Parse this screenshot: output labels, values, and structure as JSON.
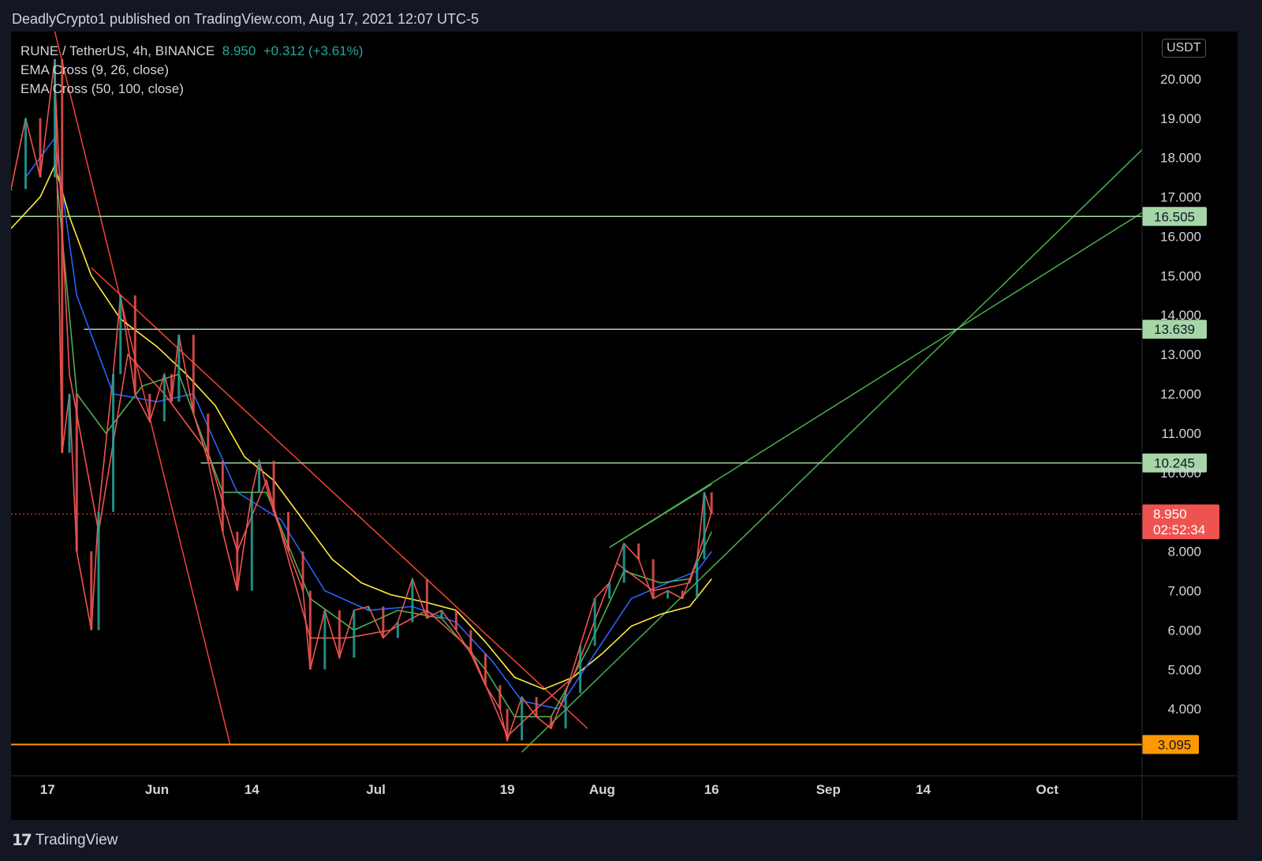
{
  "header": {
    "attribution": "DeadlyCrypto1 published on TradingView.com, Aug 17, 2021 12:07 UTC-5"
  },
  "legend": {
    "symbol": "RUNE / TetherUS, 4h, BINANCE",
    "price": "8.950",
    "change": "+0.312 (+3.61%)",
    "ema1": "EMA Cross (9, 26, close)",
    "ema2": "EMA Cross (50, 100, close)"
  },
  "currency": "USDT",
  "footer": {
    "brand": "TradingView"
  },
  "colors": {
    "background": "#000000",
    "up": "#26a69a",
    "down": "#ef5350",
    "level_line": "#a5d6a7",
    "support_line": "#ff9800",
    "trend_red": "#f44336",
    "trend_green": "#4caf50",
    "ema_yellow": "#ffeb3b",
    "ema_blue": "#2962ff",
    "ema_green": "#4caf50",
    "ema_red": "#ef5350"
  },
  "chart_data": {
    "type": "line",
    "title": "RUNE / TetherUS, 4h, BINANCE",
    "x_tick_labels": [
      "17",
      "Jun",
      "14",
      "Jul",
      "19",
      "Aug",
      "16",
      "Sep",
      "14",
      "Oct"
    ],
    "x_tick_dates": [
      "2021-05-17",
      "2021-06-01",
      "2021-06-14",
      "2021-07-01",
      "2021-07-19",
      "2021-08-01",
      "2021-08-16",
      "2021-09-01",
      "2021-09-14",
      "2021-10-01"
    ],
    "y_tick_labels": [
      "4.000",
      "5.000",
      "6.000",
      "7.000",
      "8.000",
      "10.000",
      "11.000",
      "12.000",
      "13.000",
      "14.000",
      "15.000",
      "16.000",
      "17.000",
      "18.000",
      "19.000",
      "20.000"
    ],
    "ylim": [
      2.3,
      21.2
    ],
    "series": [
      {
        "values": [
          [
            "2021-05-12",
            17.2
          ],
          [
            "2021-05-14",
            19.0
          ],
          [
            "2021-05-16",
            17.5
          ],
          [
            "2021-05-18",
            20.5
          ],
          [
            "2021-05-19",
            10.5
          ],
          [
            "2021-05-20",
            12.0
          ],
          [
            "2021-05-21",
            8.0
          ],
          [
            "2021-05-23",
            6.0
          ],
          [
            "2021-05-24",
            9.0
          ],
          [
            "2021-05-26",
            12.5
          ],
          [
            "2021-05-27",
            14.5
          ],
          [
            "2021-05-29",
            12.0
          ],
          [
            "2021-05-31",
            11.3
          ],
          [
            "2021-06-02",
            12.5
          ],
          [
            "2021-06-03",
            11.8
          ],
          [
            "2021-06-04",
            13.5
          ],
          [
            "2021-06-06",
            11.5
          ],
          [
            "2021-06-08",
            10.3
          ],
          [
            "2021-06-10",
            8.5
          ],
          [
            "2021-06-12",
            7.0
          ],
          [
            "2021-06-14",
            9.5
          ],
          [
            "2021-06-15",
            10.3
          ],
          [
            "2021-06-17",
            9.0
          ],
          [
            "2021-06-19",
            8.0
          ],
          [
            "2021-06-21",
            7.0
          ],
          [
            "2021-06-22",
            5.0
          ],
          [
            "2021-06-24",
            6.5
          ],
          [
            "2021-06-26",
            5.3
          ],
          [
            "2021-06-28",
            6.5
          ],
          [
            "2021-06-30",
            6.6
          ],
          [
            "2021-07-02",
            5.8
          ],
          [
            "2021-07-04",
            6.2
          ],
          [
            "2021-07-06",
            7.3
          ],
          [
            "2021-07-08",
            6.3
          ],
          [
            "2021-07-10",
            6.5
          ],
          [
            "2021-07-12",
            6.0
          ],
          [
            "2021-07-14",
            5.4
          ],
          [
            "2021-07-16",
            4.6
          ],
          [
            "2021-07-18",
            4.0
          ],
          [
            "2021-07-19",
            3.2
          ],
          [
            "2021-07-21",
            4.3
          ],
          [
            "2021-07-23",
            3.8
          ],
          [
            "2021-07-25",
            3.5
          ],
          [
            "2021-07-27",
            4.4
          ],
          [
            "2021-07-29",
            5.6
          ],
          [
            "2021-07-31",
            6.8
          ],
          [
            "2021-08-02",
            7.2
          ],
          [
            "2021-08-04",
            8.2
          ],
          [
            "2021-08-06",
            7.8
          ],
          [
            "2021-08-08",
            6.8
          ],
          [
            "2021-08-10",
            7.0
          ],
          [
            "2021-08-12",
            6.8
          ],
          [
            "2021-08-14",
            7.8
          ],
          [
            "2021-08-15",
            9.5
          ],
          [
            "2021-08-16",
            8.95
          ]
        ]
      }
    ],
    "ema_series": [
      {
        "values": [
          [
            "2021-05-12",
            16.2
          ],
          [
            "2021-05-16",
            17.0
          ],
          [
            "2021-05-18",
            17.8
          ],
          [
            "2021-05-20",
            16.5
          ],
          [
            "2021-05-23",
            15.0
          ],
          [
            "2021-05-27",
            13.9
          ],
          [
            "2021-06-01",
            13.2
          ],
          [
            "2021-06-05",
            12.5
          ],
          [
            "2021-06-09",
            11.7
          ],
          [
            "2021-06-13",
            10.4
          ],
          [
            "2021-06-17",
            9.8
          ],
          [
            "2021-06-21",
            8.8
          ],
          [
            "2021-06-25",
            7.8
          ],
          [
            "2021-06-29",
            7.2
          ],
          [
            "2021-07-03",
            6.9
          ],
          [
            "2021-07-08",
            6.7
          ],
          [
            "2021-07-12",
            6.5
          ],
          [
            "2021-07-16",
            5.7
          ],
          [
            "2021-07-20",
            4.8
          ],
          [
            "2021-07-24",
            4.5
          ],
          [
            "2021-07-28",
            4.8
          ],
          [
            "2021-08-01",
            5.4
          ],
          [
            "2021-08-05",
            6.1
          ],
          [
            "2021-08-09",
            6.4
          ],
          [
            "2021-08-13",
            6.6
          ],
          [
            "2021-08-16",
            7.3
          ]
        ]
      },
      {
        "values": [
          [
            "2021-05-14",
            17.5
          ],
          [
            "2021-05-18",
            18.5
          ],
          [
            "2021-05-21",
            14.5
          ],
          [
            "2021-05-26",
            12.0
          ],
          [
            "2021-06-01",
            11.8
          ],
          [
            "2021-06-06",
            12.0
          ],
          [
            "2021-06-12",
            9.5
          ],
          [
            "2021-06-18",
            8.8
          ],
          [
            "2021-06-24",
            7.0
          ],
          [
            "2021-06-30",
            6.5
          ],
          [
            "2021-07-06",
            6.6
          ],
          [
            "2021-07-12",
            6.2
          ],
          [
            "2021-07-17",
            5.2
          ],
          [
            "2021-07-21",
            4.2
          ],
          [
            "2021-07-26",
            4.0
          ],
          [
            "2021-07-31",
            5.4
          ],
          [
            "2021-08-05",
            6.8
          ],
          [
            "2021-08-10",
            7.2
          ],
          [
            "2021-08-14",
            7.5
          ],
          [
            "2021-08-16",
            8.0
          ]
        ]
      },
      {
        "values": [
          [
            "2021-05-18",
            18.0
          ],
          [
            "2021-05-21",
            12.0
          ],
          [
            "2021-05-25",
            11.0
          ],
          [
            "2021-05-30",
            12.2
          ],
          [
            "2021-06-04",
            12.5
          ],
          [
            "2021-06-10",
            9.5
          ],
          [
            "2021-06-16",
            9.5
          ],
          [
            "2021-06-22",
            6.8
          ],
          [
            "2021-06-28",
            6.0
          ],
          [
            "2021-07-04",
            6.5
          ],
          [
            "2021-07-10",
            6.3
          ],
          [
            "2021-07-16",
            5.0
          ],
          [
            "2021-07-20",
            3.8
          ],
          [
            "2021-07-25",
            3.8
          ],
          [
            "2021-07-30",
            5.5
          ],
          [
            "2021-08-04",
            7.5
          ],
          [
            "2021-08-09",
            7.2
          ],
          [
            "2021-08-13",
            7.3
          ],
          [
            "2021-08-16",
            8.5
          ]
        ]
      },
      {
        "values": [
          [
            "2021-05-18",
            20.0
          ],
          [
            "2021-05-20",
            12.5
          ],
          [
            "2021-05-24",
            8.5
          ],
          [
            "2021-05-28",
            13.0
          ],
          [
            "2021-06-02",
            12.0
          ],
          [
            "2021-06-08",
            10.5
          ],
          [
            "2021-06-12",
            8.0
          ],
          [
            "2021-06-16",
            9.8
          ],
          [
            "2021-06-22",
            5.8
          ],
          [
            "2021-06-27",
            5.8
          ],
          [
            "2021-07-03",
            6.0
          ],
          [
            "2021-07-08",
            6.5
          ],
          [
            "2021-07-14",
            5.5
          ],
          [
            "2021-07-19",
            3.3
          ],
          [
            "2021-07-23",
            4.0
          ],
          [
            "2021-07-28",
            4.8
          ],
          [
            "2021-08-03",
            7.7
          ],
          [
            "2021-08-08",
            7.0
          ],
          [
            "2021-08-13",
            7.2
          ],
          [
            "2021-08-16",
            9.0
          ]
        ]
      }
    ],
    "levels": [
      {
        "value": 16.505,
        "label": "16.505"
      },
      {
        "value": 13.639,
        "label": "13.639"
      },
      {
        "value": 10.245,
        "label": "10.245"
      },
      {
        "value": 3.095,
        "label": "3.095"
      }
    ],
    "current_price": {
      "value": 8.95,
      "label": "8.950",
      "countdown": "02:52:34"
    },
    "trendlines": [
      {
        "from": [
          "2021-05-18",
          21.2
        ],
        "to": [
          "2021-06-11",
          3.1
        ]
      },
      {
        "from": [
          "2021-05-23",
          15.2
        ],
        "to": [
          "2021-07-30",
          3.5
        ]
      },
      {
        "from": [
          "2021-07-21",
          2.9
        ],
        "to": [
          "2021-10-14",
          18.2
        ]
      },
      {
        "from": [
          "2021-08-02",
          8.1
        ],
        "to": [
          "2021-10-14",
          16.6
        ]
      },
      {
        "from": [
          "2021-08-02",
          8.1
        ],
        "to": [
          "2021-08-16",
          9.7
        ]
      }
    ]
  }
}
